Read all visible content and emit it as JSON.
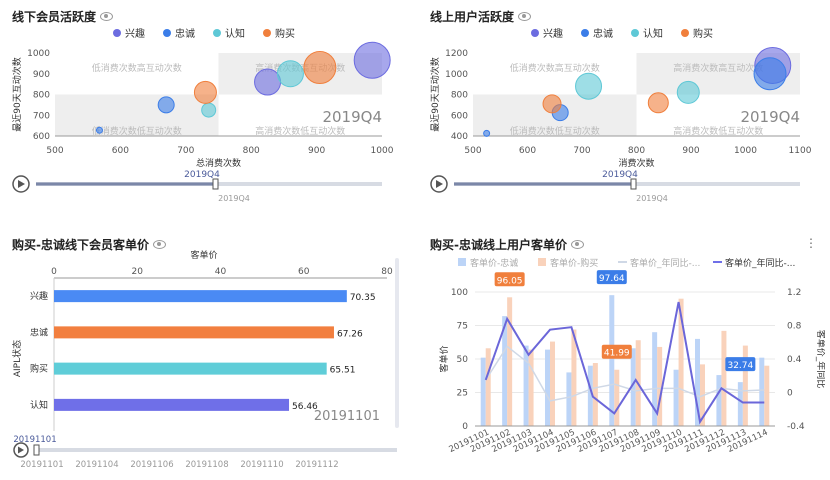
{
  "panels": [
    {
      "title": "线下会员活跃度"
    },
    {
      "title": "线上用户活跃度"
    },
    {
      "title": "购买-忠诚线下会员客单价"
    },
    {
      "title": "购买-忠诚线上用户客单价"
    }
  ],
  "colors": {
    "兴趣": "#6c6ce0",
    "忠诚": "#3b7de8",
    "认知": "#5ec8d6",
    "购买": "#f07f3c",
    "blue": "#4a8af4",
    "orange": "#f27f3f",
    "teal": "#5fcdd8",
    "purple": "#6f6fe8"
  },
  "chart_data": [
    {
      "type": "scatter",
      "title": "线下会员活跃度",
      "legend": [
        "兴趣",
        "忠诚",
        "认知",
        "购买"
      ],
      "xlabel": "总消费次数",
      "ylabel": "最近90天互动次数",
      "xlim": [
        500,
        1000
      ],
      "ylim": [
        600,
        1000
      ],
      "xticks": [
        500,
        600,
        700,
        800,
        900,
        1000
      ],
      "yticks": [
        600,
        700,
        800,
        900,
        1000
      ],
      "quadrants": [
        "低消费次数高互动次数",
        "高消费次数高互动次数",
        "低消费次数低互动次数",
        "高消费次数低互动次数"
      ],
      "period_label": "2019Q4",
      "points": [
        {
          "series": "兴趣",
          "x": 985,
          "y": 965,
          "r": 18
        },
        {
          "series": "兴趣",
          "x": 825,
          "y": 860,
          "r": 13
        },
        {
          "series": "忠诚",
          "x": 670,
          "y": 750,
          "r": 8
        },
        {
          "series": "忠诚",
          "x": 568,
          "y": 628,
          "r": 3
        },
        {
          "series": "认知",
          "x": 860,
          "y": 900,
          "r": 13
        },
        {
          "series": "认知",
          "x": 735,
          "y": 725,
          "r": 7
        },
        {
          "series": "购买",
          "x": 905,
          "y": 930,
          "r": 16
        },
        {
          "series": "购买",
          "x": 730,
          "y": 810,
          "r": 11
        }
      ],
      "timeline": {
        "label": "2019Q4",
        "tick": "2019Q4"
      }
    },
    {
      "type": "scatter",
      "title": "线上用户活跃度",
      "legend": [
        "兴趣",
        "忠诚",
        "认知",
        "购买"
      ],
      "xlabel": "消费次数",
      "ylabel": "最近90天互动次数",
      "xlim": [
        500,
        1100
      ],
      "ylim": [
        400,
        1200
      ],
      "xticks": [
        500,
        600,
        700,
        800,
        900,
        1000,
        1100
      ],
      "yticks": [
        400,
        600,
        800,
        1000,
        1200
      ],
      "quadrants": [
        "低消费次数高互动次数",
        "高消费次数高互动次数",
        "低消费次数低互动次数",
        "高消费次数低互动次数"
      ],
      "period_label": "2019Q4",
      "points": [
        {
          "series": "兴趣",
          "x": 1050,
          "y": 1080,
          "r": 18
        },
        {
          "series": "忠诚",
          "x": 1045,
          "y": 1000,
          "r": 16
        },
        {
          "series": "忠诚",
          "x": 660,
          "y": 625,
          "r": 8
        },
        {
          "series": "忠诚",
          "x": 525,
          "y": 425,
          "r": 3
        },
        {
          "series": "认知",
          "x": 712,
          "y": 880,
          "r": 13
        },
        {
          "series": "认知",
          "x": 895,
          "y": 820,
          "r": 11
        },
        {
          "series": "购买",
          "x": 645,
          "y": 710,
          "r": 9
        },
        {
          "series": "购买",
          "x": 840,
          "y": 720,
          "r": 10
        }
      ],
      "timeline": {
        "label": "2019Q4",
        "tick": "2019Q4"
      }
    },
    {
      "type": "bar",
      "orientation": "horizontal",
      "title": "购买-忠诚线下会员客单价",
      "xlabel": "客单价",
      "ylabel": "AIPL状态",
      "xlim": [
        0,
        80
      ],
      "xticks": [
        0,
        20,
        40,
        60,
        80
      ],
      "categories": [
        "兴趣",
        "忠诚",
        "购买",
        "认知"
      ],
      "values": [
        70.35,
        67.26,
        65.51,
        56.46
      ],
      "bar_colors": [
        "#4a8af4",
        "#f27f3f",
        "#5fcdd8",
        "#6f6fe8"
      ],
      "period_label": "20191101",
      "timeline": {
        "label": "20191101",
        "ticks": [
          "20191101",
          "20191104",
          "20191106",
          "20191108",
          "20191110",
          "20191112"
        ]
      }
    },
    {
      "type": "bar+line",
      "title": "购买-忠诚线上用户客单价",
      "legend": [
        "客单价-忠诚",
        "客单价-购买",
        "客单价_年同比-...",
        "客单价_年同比-..."
      ],
      "ylabel": "客单价",
      "y2label": "客单价_年同比",
      "ylim": [
        0,
        100
      ],
      "yticks": [
        0,
        25,
        50,
        75,
        100
      ],
      "y2lim": [
        -0.4,
        1.2
      ],
      "y2ticks": [
        -0.4,
        0,
        0.4,
        0.8,
        1.2
      ],
      "categories": [
        "20191101",
        "20191102",
        "20191103",
        "20191104",
        "20191105",
        "20191106",
        "20191107",
        "20191108",
        "20191109",
        "20191110",
        "20191111",
        "20191112",
        "20191113",
        "20191114"
      ],
      "series": [
        {
          "name": "客单价-忠诚",
          "type": "bar",
          "values": [
            51,
            82,
            60,
            57,
            40,
            45,
            97.64,
            58,
            70,
            42,
            65,
            38,
            32.74,
            51
          ]
        },
        {
          "name": "客单价-购买",
          "type": "bar",
          "values": [
            58,
            96.05,
            57,
            63,
            72,
            47,
            41.99,
            64,
            59,
            95,
            46,
            71,
            60,
            45
          ]
        },
        {
          "name": "客单价_年同比-...",
          "type": "line",
          "values": [
            0.15,
            0.55,
            0.35,
            -0.1,
            -0.05,
            0.05,
            0.1,
            0.02,
            0.05,
            0.05,
            -0.05,
            0.05,
            0.02,
            0.03
          ]
        },
        {
          "name": "客单价_年同比-...",
          "type": "line",
          "values": [
            0.15,
            0.88,
            0.45,
            0.75,
            0.78,
            -0.05,
            -0.25,
            0.15,
            -0.25,
            1.08,
            -0.35,
            0.05,
            -0.12,
            -0.12
          ]
        }
      ],
      "labels": [
        {
          "text": "96.05",
          "series": 1,
          "index": 1
        },
        {
          "text": "97.64",
          "series": 0,
          "index": 6
        },
        {
          "text": "41.99",
          "series": 1,
          "index": 6
        },
        {
          "text": "32.74",
          "series": 0,
          "index": 12
        }
      ]
    }
  ]
}
